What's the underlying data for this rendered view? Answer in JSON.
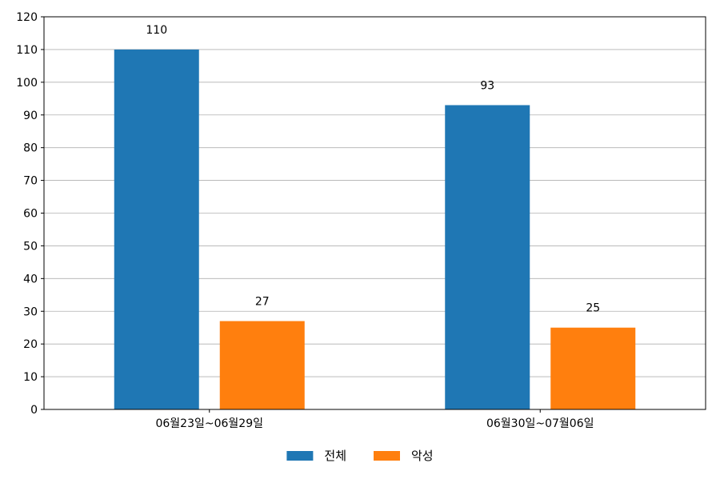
{
  "chart_data": {
    "type": "bar",
    "categories": [
      "06월23일~06월29일",
      "06월30일~07월06일"
    ],
    "series": [
      {
        "name": "전체",
        "values": [
          110,
          93
        ],
        "color": "#1f77b4"
      },
      {
        "name": "악성",
        "values": [
          27,
          25
        ],
        "color": "#ff7f0e"
      }
    ],
    "title": "",
    "xlabel": "",
    "ylabel": "",
    "ylim": [
      0,
      120
    ],
    "yticks": [
      0,
      10,
      20,
      30,
      40,
      50,
      60,
      70,
      80,
      90,
      100,
      110,
      120
    ],
    "grid": "horizontal",
    "legend_position": "bottom-center",
    "show_data_labels": true
  }
}
